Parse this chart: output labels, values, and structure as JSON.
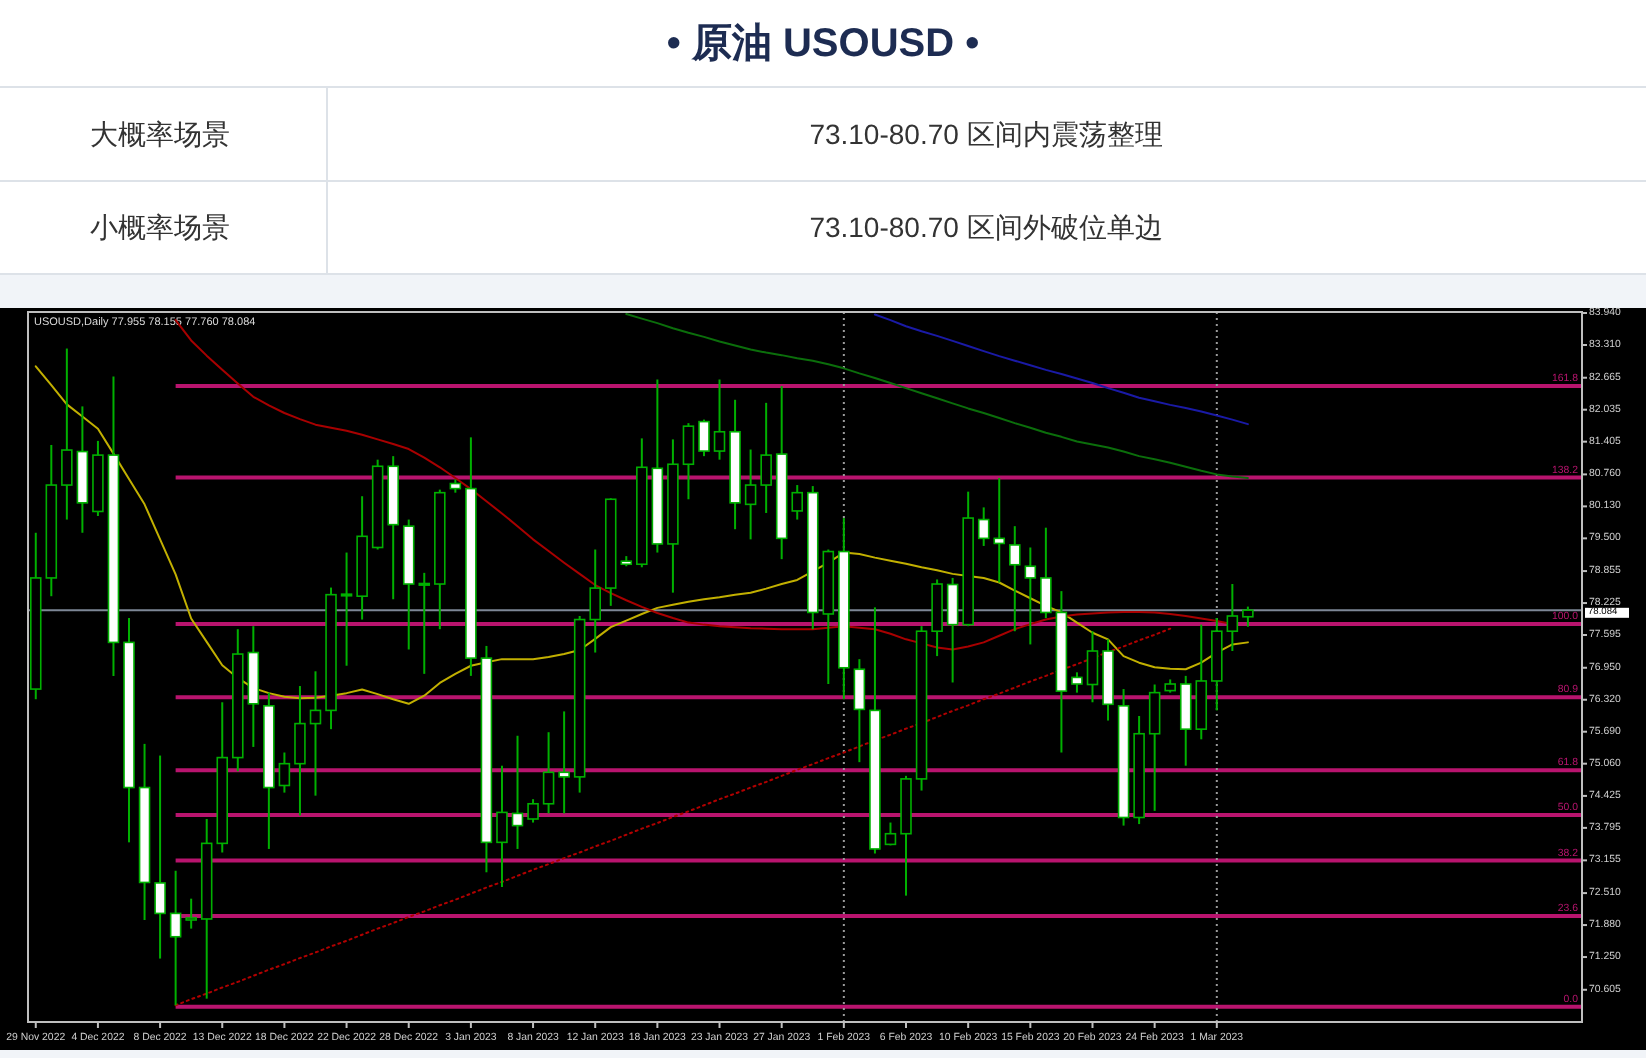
{
  "chart_data": {
    "type": "candlestick",
    "title": "• 原油 USOUSD •",
    "annotations": [
      "大概率场景",
      "73.10-80.70 区间内震荡整理",
      "小概率场景",
      "73.10-80.70 区间外破位单边",
      "USOUSD,Daily 77.955 78.155 77.760 78.084",
      {
        "text": "161.8",
        "y": 82.5
      },
      {
        "text": "138.2",
        "y": 80.7
      },
      {
        "text": "100.0",
        "y": 77.81
      },
      {
        "text": "80.9",
        "y": 76.37
      },
      {
        "text": "61.8",
        "y": 74.93
      },
      {
        "text": "50.0",
        "y": 74.05
      },
      {
        "text": "38.2",
        "y": 73.15
      },
      {
        "text": "23.6",
        "y": 72.06
      },
      {
        "text": "0.0",
        "y": 70.27
      }
    ],
    "categories": [
      "29 Nov 2022",
      null,
      null,
      null,
      "4 Dec 2022",
      null,
      null,
      null,
      "8 Dec 2022",
      null,
      null,
      null,
      "13 Dec 2022",
      null,
      null,
      null,
      "18 Dec 2022",
      null,
      null,
      null,
      "22 Dec 2022",
      null,
      null,
      null,
      "28 Dec 2022",
      null,
      null,
      null,
      "3 Jan 2023",
      null,
      null,
      null,
      "8 Jan 2023",
      null,
      null,
      null,
      "12 Jan 2023",
      null,
      null,
      null,
      "18 Jan 2023",
      null,
      null,
      null,
      "23 Jan 2023",
      null,
      null,
      null,
      "27 Jan 2023",
      null,
      null,
      null,
      "1 Feb 2023",
      null,
      null,
      null,
      "6 Feb 2023",
      null,
      null,
      null,
      "10 Feb 2023",
      null,
      null,
      null,
      "15 Feb 2023",
      null,
      null,
      null,
      "20 Feb 2023",
      null,
      null,
      null,
      "24 Feb 2023",
      null,
      null,
      null,
      "1 Mar 2023",
      null,
      null,
      null,
      null,
      null,
      null,
      null,
      null,
      null,
      null,
      null,
      null,
      null,
      null,
      null,
      null,
      null,
      null,
      null,
      null,
      null,
      null,
      null
    ],
    "color": "#00b000",
    "ohlc": [
      [
        76.53,
        79.61,
        76.33,
        78.72
      ],
      [
        78.72,
        81.34,
        78.36,
        80.55
      ],
      [
        80.55,
        83.24,
        79.87,
        81.24
      ],
      [
        81.21,
        82.1,
        79.61,
        80.2
      ],
      [
        80.03,
        81.42,
        79.94,
        81.14
      ],
      [
        81.14,
        82.69,
        76.79,
        77.45
      ],
      [
        77.45,
        77.93,
        73.51,
        74.59
      ],
      [
        74.59,
        75.45,
        71.98,
        72.72
      ],
      [
        72.71,
        75.22,
        71.22,
        72.11
      ],
      [
        72.11,
        72.95,
        70.3,
        71.65
      ],
      [
        71.98,
        72.4,
        71.81,
        72.02
      ],
      [
        72.0,
        73.97,
        70.43,
        73.49
      ],
      [
        73.49,
        76.27,
        73.31,
        75.18
      ],
      [
        75.18,
        77.71,
        74.91,
        77.22
      ],
      [
        77.25,
        77.77,
        75.39,
        76.24
      ],
      [
        76.2,
        76.46,
        73.38,
        74.59
      ],
      [
        74.63,
        75.28,
        74.49,
        75.06
      ],
      [
        75.06,
        76.59,
        74.04,
        75.85
      ],
      [
        75.85,
        76.88,
        74.43,
        76.11
      ],
      [
        76.11,
        78.53,
        75.74,
        78.39
      ],
      [
        78.38,
        79.22,
        76.99,
        78.4
      ],
      [
        78.36,
        80.33,
        77.9,
        79.54
      ],
      [
        79.32,
        81.05,
        79.28,
        80.92
      ],
      [
        80.92,
        81.12,
        78.3,
        79.77
      ],
      [
        79.74,
        79.87,
        77.31,
        78.6
      ],
      [
        78.59,
        78.82,
        76.83,
        78.61
      ],
      [
        78.6,
        80.46,
        77.71,
        80.4
      ],
      [
        80.58,
        80.66,
        80.4,
        80.48
      ],
      [
        80.48,
        81.49,
        76.79,
        77.14
      ],
      [
        77.14,
        77.38,
        72.92,
        73.51
      ],
      [
        73.51,
        75.02,
        72.63,
        74.1
      ],
      [
        74.08,
        75.61,
        73.38,
        73.84
      ],
      [
        73.97,
        74.36,
        73.9,
        74.27
      ],
      [
        74.27,
        75.68,
        74.08,
        74.89
      ],
      [
        74.89,
        76.09,
        74.08,
        74.8
      ],
      [
        74.8,
        77.97,
        74.49,
        77.9
      ],
      [
        77.9,
        79.28,
        77.25,
        78.52
      ],
      [
        78.52,
        80.29,
        78.17,
        80.27
      ],
      [
        79.05,
        79.15,
        78.95,
        78.99
      ],
      [
        78.99,
        81.47,
        78.93,
        80.9
      ],
      [
        80.88,
        82.63,
        79.22,
        79.39
      ],
      [
        79.39,
        81.45,
        78.43,
        80.96
      ],
      [
        80.96,
        81.77,
        80.27,
        81.71
      ],
      [
        81.8,
        81.84,
        81.12,
        81.22
      ],
      [
        81.22,
        82.63,
        81.05,
        81.6
      ],
      [
        81.6,
        82.23,
        79.68,
        80.2
      ],
      [
        80.17,
        81.25,
        79.48,
        80.55
      ],
      [
        80.55,
        82.17,
        80.0,
        81.14
      ],
      [
        81.16,
        82.5,
        79.09,
        79.5
      ],
      [
        80.04,
        80.55,
        79.87,
        80.4
      ],
      [
        80.4,
        80.53,
        77.71,
        78.04
      ],
      [
        78.01,
        79.28,
        76.63,
        79.24
      ],
      [
        79.24,
        79.9,
        76.33,
        76.95
      ],
      [
        76.92,
        77.12,
        75.09,
        76.13
      ],
      [
        76.11,
        78.14,
        73.29,
        73.38
      ],
      [
        73.47,
        73.9,
        73.45,
        73.68
      ],
      [
        73.68,
        74.82,
        72.46,
        74.76
      ],
      [
        74.76,
        77.77,
        74.53,
        77.67
      ],
      [
        77.67,
        78.69,
        77.18,
        78.6
      ],
      [
        78.59,
        78.72,
        76.66,
        77.8
      ],
      [
        77.8,
        80.42,
        77.77,
        79.9
      ],
      [
        79.87,
        80.11,
        79.35,
        79.5
      ],
      [
        79.5,
        80.69,
        78.63,
        79.4
      ],
      [
        79.37,
        79.74,
        77.67,
        78.98
      ],
      [
        78.95,
        79.32,
        77.41,
        78.72
      ],
      [
        78.72,
        79.71,
        77.93,
        78.04
      ],
      [
        78.04,
        78.46,
        75.28,
        76.49
      ],
      [
        76.76,
        76.86,
        76.46,
        76.63
      ],
      [
        76.62,
        77.67,
        76.27,
        77.28
      ],
      [
        77.28,
        77.51,
        75.91,
        76.23
      ],
      [
        76.2,
        76.53,
        73.84,
        74.0
      ],
      [
        74.0,
        76.0,
        73.87,
        75.65
      ],
      [
        75.65,
        76.62,
        74.13,
        76.46
      ],
      [
        76.5,
        76.72,
        76.46,
        76.63
      ],
      [
        76.63,
        76.79,
        75.02,
        75.74
      ],
      [
        75.74,
        77.8,
        75.54,
        76.69
      ],
      [
        76.69,
        77.93,
        76.11,
        77.67
      ],
      [
        77.67,
        78.6,
        77.28,
        77.97
      ],
      [
        77.955,
        78.155,
        77.76,
        78.084
      ],
      null,
      null,
      null,
      null,
      null,
      null,
      null,
      null,
      null,
      null,
      null,
      null,
      null,
      null,
      null,
      null,
      null,
      null,
      null,
      null,
      null
    ],
    "colors": [
      "#000000",
      "#000000",
      "#000000",
      "#ffffff",
      "#000000",
      "#ffffff",
      "#ffffff",
      "#ffffff",
      "#ffffff",
      "#ffffff",
      "#000000",
      "#000000",
      "#000000",
      "#000000",
      "#ffffff",
      "#ffffff",
      "#000000",
      "#000000",
      "#000000",
      "#000000",
      "#000000",
      "#000000",
      "#000000",
      "#ffffff",
      "#ffffff",
      "#000000",
      "#000000",
      "#ffffff",
      "#ffffff",
      "#ffffff",
      "#000000",
      "#ffffff",
      "#000000",
      "#000000",
      "#ffffff",
      "#000000",
      "#000000",
      "#000000",
      "#ffffff",
      "#000000",
      "#ffffff",
      "#000000",
      "#000000",
      "#ffffff",
      "#000000",
      "#ffffff",
      "#000000",
      "#000000",
      "#ffffff",
      "#000000",
      "#ffffff",
      "#000000",
      "#ffffff",
      "#ffffff",
      "#ffffff",
      "#000000",
      "#000000",
      "#000000",
      "#000000",
      "#ffffff",
      "#000000",
      "#ffffff",
      "#ffffff",
      "#ffffff",
      "#ffffff",
      "#ffffff",
      "#ffffff",
      "#ffffff",
      "#000000",
      "#ffffff",
      "#ffffff",
      "#000000",
      "#000000",
      "#000000",
      "#ffffff",
      "#000000",
      "#000000",
      "#000000",
      "#000000",
      null,
      null,
      null,
      null,
      null,
      null,
      null,
      null,
      null,
      null,
      null,
      null,
      null,
      null,
      null,
      null,
      null,
      null,
      null,
      null,
      null
    ],
    "series": [
      {
        "type": "line",
        "color": "#c2b000",
        "values": [
          82.89,
          82.52,
          82.14,
          81.9,
          81.66,
          81.17,
          80.67,
          80.17,
          79.48,
          78.79,
          77.92,
          77.46,
          77.0,
          76.75,
          76.55,
          76.45,
          76.38,
          76.35,
          76.36,
          76.4,
          76.45,
          76.52,
          76.43,
          76.33,
          76.24,
          76.4,
          76.65,
          76.83,
          76.99,
          77.06,
          77.12,
          77.12,
          77.12,
          77.16,
          77.22,
          77.3,
          77.52,
          77.75,
          77.88,
          78.01,
          78.13,
          78.19,
          78.25,
          78.3,
          78.34,
          78.39,
          78.43,
          78.51,
          78.6,
          78.68,
          78.85,
          79.02,
          79.22,
          79.19,
          79.12,
          79.06,
          79.0,
          78.93,
          78.87,
          78.8,
          78.76,
          78.72,
          78.63,
          78.47,
          78.32,
          78.17,
          78.04,
          77.84,
          77.64,
          77.51,
          77.18,
          77.05,
          76.96,
          76.93,
          76.92,
          77.05,
          77.25,
          77.41,
          77.45,
          null,
          null,
          null,
          null,
          null,
          null,
          null,
          null,
          null,
          null,
          null,
          null,
          null,
          null,
          null,
          null,
          null,
          null,
          null,
          null,
          null
        ]
      },
      {
        "type": "line",
        "color": "#a80000",
        "values": [
          null,
          null,
          null,
          null,
          null,
          null,
          null,
          null,
          null,
          83.8,
          83.4,
          83.1,
          82.82,
          82.55,
          82.29,
          82.12,
          81.97,
          81.85,
          81.74,
          81.68,
          81.62,
          81.54,
          81.45,
          81.36,
          81.26,
          81.09,
          80.9,
          80.69,
          80.47,
          80.23,
          79.99,
          79.74,
          79.48,
          79.25,
          79.02,
          78.8,
          78.58,
          78.42,
          78.28,
          78.15,
          78.03,
          77.93,
          77.84,
          77.8,
          77.77,
          77.75,
          77.73,
          77.72,
          77.71,
          77.71,
          77.71,
          77.74,
          77.77,
          77.74,
          77.71,
          77.62,
          77.51,
          77.43,
          77.35,
          77.31,
          77.37,
          77.45,
          77.58,
          77.71,
          77.81,
          77.9,
          77.96,
          78.0,
          78.02,
          78.04,
          78.05,
          78.05,
          78.04,
          78.01,
          77.97,
          77.92,
          77.87,
          77.81,
          null,
          null,
          null,
          null,
          null,
          null,
          null,
          null,
          null,
          null,
          null,
          null,
          null,
          null,
          null,
          null,
          null,
          null,
          null,
          null,
          null,
          null
        ]
      },
      {
        "type": "line",
        "color": "#0b6e0b",
        "values": [
          null,
          null,
          null,
          null,
          null,
          null,
          null,
          null,
          null,
          null,
          null,
          null,
          null,
          null,
          null,
          null,
          null,
          null,
          null,
          null,
          null,
          null,
          null,
          null,
          null,
          null,
          null,
          null,
          null,
          null,
          null,
          null,
          null,
          null,
          null,
          null,
          null,
          null,
          83.92,
          83.83,
          83.74,
          83.64,
          83.55,
          83.47,
          83.38,
          83.3,
          83.22,
          83.16,
          83.11,
          83.05,
          83.0,
          82.93,
          82.85,
          82.75,
          82.66,
          82.56,
          82.46,
          82.36,
          82.26,
          82.16,
          82.06,
          81.97,
          81.87,
          81.77,
          81.68,
          81.58,
          81.5,
          81.41,
          81.35,
          81.29,
          81.21,
          81.12,
          81.06,
          80.99,
          80.91,
          80.83,
          80.76,
          80.72,
          80.69,
          null,
          null,
          null,
          null,
          null,
          null,
          null,
          null,
          null,
          null,
          null,
          null,
          null,
          null,
          null,
          null,
          null,
          null,
          null,
          null,
          null
        ]
      },
      {
        "type": "line",
        "color": "#1a1aa6",
        "values": [
          null,
          null,
          null,
          null,
          null,
          null,
          null,
          null,
          null,
          null,
          null,
          null,
          null,
          null,
          null,
          null,
          null,
          null,
          null,
          null,
          null,
          null,
          null,
          null,
          null,
          null,
          null,
          null,
          null,
          null,
          null,
          null,
          null,
          null,
          null,
          null,
          null,
          null,
          null,
          null,
          null,
          null,
          null,
          null,
          null,
          null,
          null,
          null,
          null,
          null,
          null,
          null,
          null,
          null,
          83.91,
          83.8,
          83.68,
          83.58,
          83.49,
          83.39,
          83.29,
          83.19,
          83.09,
          83.0,
          82.91,
          82.82,
          82.74,
          82.65,
          82.56,
          82.46,
          82.37,
          82.27,
          82.2,
          82.13,
          82.07,
          82.0,
          81.92,
          81.84,
          81.75,
          null,
          null,
          null,
          null,
          null,
          null,
          null,
          null,
          null,
          null,
          null,
          null,
          null,
          null,
          null,
          null,
          null,
          null,
          null,
          null,
          null
        ]
      },
      {
        "type": "line",
        "color": "#b00000",
        "line_style": "dotted",
        "values": [
          null,
          null,
          null,
          null,
          null,
          null,
          null,
          null,
          null,
          70.3,
          70.42,
          70.53,
          70.65,
          70.76,
          70.88,
          71.0,
          71.11,
          71.23,
          71.34,
          71.46,
          71.57,
          71.69,
          71.81,
          71.92,
          72.04,
          72.15,
          72.27,
          72.38,
          72.5,
          72.62,
          72.73,
          72.85,
          72.97,
          73.08,
          73.2,
          73.31,
          73.43,
          73.54,
          73.66,
          73.78,
          73.89,
          74.01,
          74.12,
          74.24,
          74.36,
          74.47,
          74.59,
          74.7,
          74.82,
          74.94,
          75.05,
          75.17,
          75.28,
          75.4,
          75.52,
          75.63,
          75.75,
          75.86,
          75.98,
          76.1,
          76.21,
          76.33,
          76.44,
          76.56,
          76.68,
          76.79,
          76.91,
          77.02,
          77.14,
          77.26,
          77.37,
          77.49,
          77.6,
          77.72,
          null,
          null,
          null,
          null,
          null,
          null,
          null,
          null,
          null,
          null,
          null,
          null,
          null,
          null,
          null,
          null,
          null,
          null,
          null,
          null,
          null,
          null,
          null,
          null,
          null,
          null
        ]
      }
    ],
    "ylim": [
      69.97,
      83.96
    ],
    "yticks": [
      {
        "value": 83.94,
        "label": "83.940"
      },
      {
        "value": 83.31,
        "label": "83.310"
      },
      {
        "value": 82.665,
        "label": "82.665"
      },
      {
        "value": 82.035,
        "label": "82.035"
      },
      {
        "value": 81.405,
        "label": "81.405"
      },
      {
        "value": 80.76,
        "label": "80.760"
      },
      {
        "value": 80.13,
        "label": "80.130"
      },
      {
        "value": 79.5,
        "label": "79.500"
      },
      {
        "value": 78.855,
        "label": "78.855"
      },
      {
        "value": 78.225,
        "label": "78.225"
      },
      {
        "value": 77.595,
        "label": "77.595"
      },
      {
        "value": 76.95,
        "label": "76.950"
      },
      {
        "value": 76.32,
        "label": "76.320"
      },
      {
        "value": 75.69,
        "label": "75.690"
      },
      {
        "value": 75.06,
        "label": "75.060"
      },
      {
        "value": 74.425,
        "label": "74.425"
      },
      {
        "value": 73.795,
        "label": "73.795"
      },
      {
        "value": 73.155,
        "label": "73.155"
      },
      {
        "value": 72.51,
        "label": "72.510"
      },
      {
        "value": 71.88,
        "label": "71.880"
      },
      {
        "value": 71.25,
        "label": "71.250"
      },
      {
        "value": 70.605,
        "label": "70.605"
      }
    ],
    "ref_lines": [
      {
        "axis": "y",
        "value": 82.5,
        "color": "#b8146e"
      },
      {
        "axis": "y",
        "value": 80.7,
        "color": "#b8146e"
      },
      {
        "axis": "y",
        "value": 77.81,
        "color": "#b8146e"
      },
      {
        "axis": "y",
        "value": 76.37,
        "color": "#b8146e"
      },
      {
        "axis": "y",
        "value": 74.93,
        "color": "#b8146e"
      },
      {
        "axis": "y",
        "value": 74.05,
        "color": "#b8146e"
      },
      {
        "axis": "y",
        "value": 73.15,
        "color": "#b8146e"
      },
      {
        "axis": "y",
        "value": 72.06,
        "color": "#b8146e"
      },
      {
        "axis": "y",
        "value": 70.27,
        "color": "#b8146e"
      },
      {
        "axis": "y",
        "value": 78.084,
        "label": "78.084",
        "color": "#7d8796",
        "line_style": "solid"
      },
      {
        "axis": "x",
        "value": "1 Feb 2023",
        "color": "#9a9a9a",
        "line_style": "dotted"
      },
      {
        "axis": "x",
        "value": "1 Mar 2023",
        "color": "#9a9a9a",
        "line_style": "dotted"
      }
    ]
  }
}
